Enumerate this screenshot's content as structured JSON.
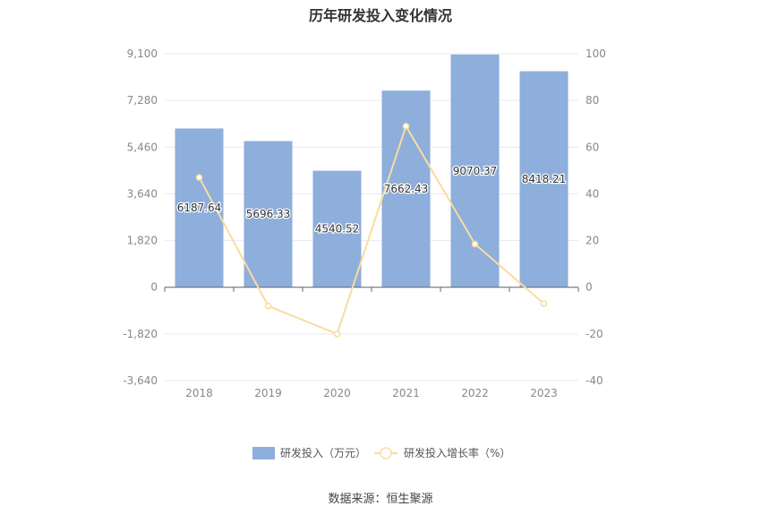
{
  "chart_data": {
    "type": "bar",
    "title": "历年研发投入变化情况",
    "categories": [
      "2018",
      "2019",
      "2020",
      "2021",
      "2022",
      "2023"
    ],
    "series": [
      {
        "name": "研发投入（万元）",
        "type": "bar",
        "axis": "left",
        "values": [
          6187.64,
          5696.33,
          4540.52,
          7662.43,
          9070.37,
          8418.21
        ],
        "labels": [
          "6187.64",
          "5696.33",
          "4540.52",
          "7662.43",
          "9070.37",
          "8418.21"
        ],
        "color": "#8eaedc"
      },
      {
        "name": "研发投入增长率（%）",
        "type": "line",
        "axis": "right",
        "values": [
          47,
          -8,
          -20,
          69,
          18.5,
          -7
        ],
        "color": "#fbdba0"
      }
    ],
    "y_left": {
      "ticks": [
        "9,100",
        "7,280",
        "5,460",
        "3,640",
        "1,820",
        "0",
        "-1,820",
        "-3,640"
      ],
      "min": -3640,
      "max": 9100
    },
    "y_right": {
      "ticks": [
        "100",
        "80",
        "60",
        "40",
        "20",
        "0",
        "-20",
        "-40"
      ],
      "min": -40,
      "max": 100
    },
    "grid": true,
    "legend_position": "bottom"
  },
  "source": "数据来源：恒生聚源",
  "colors": {
    "bar": "#8eaedc",
    "line": "#fbdba0",
    "grid": "#e6e9f2",
    "axis": "#666666"
  }
}
